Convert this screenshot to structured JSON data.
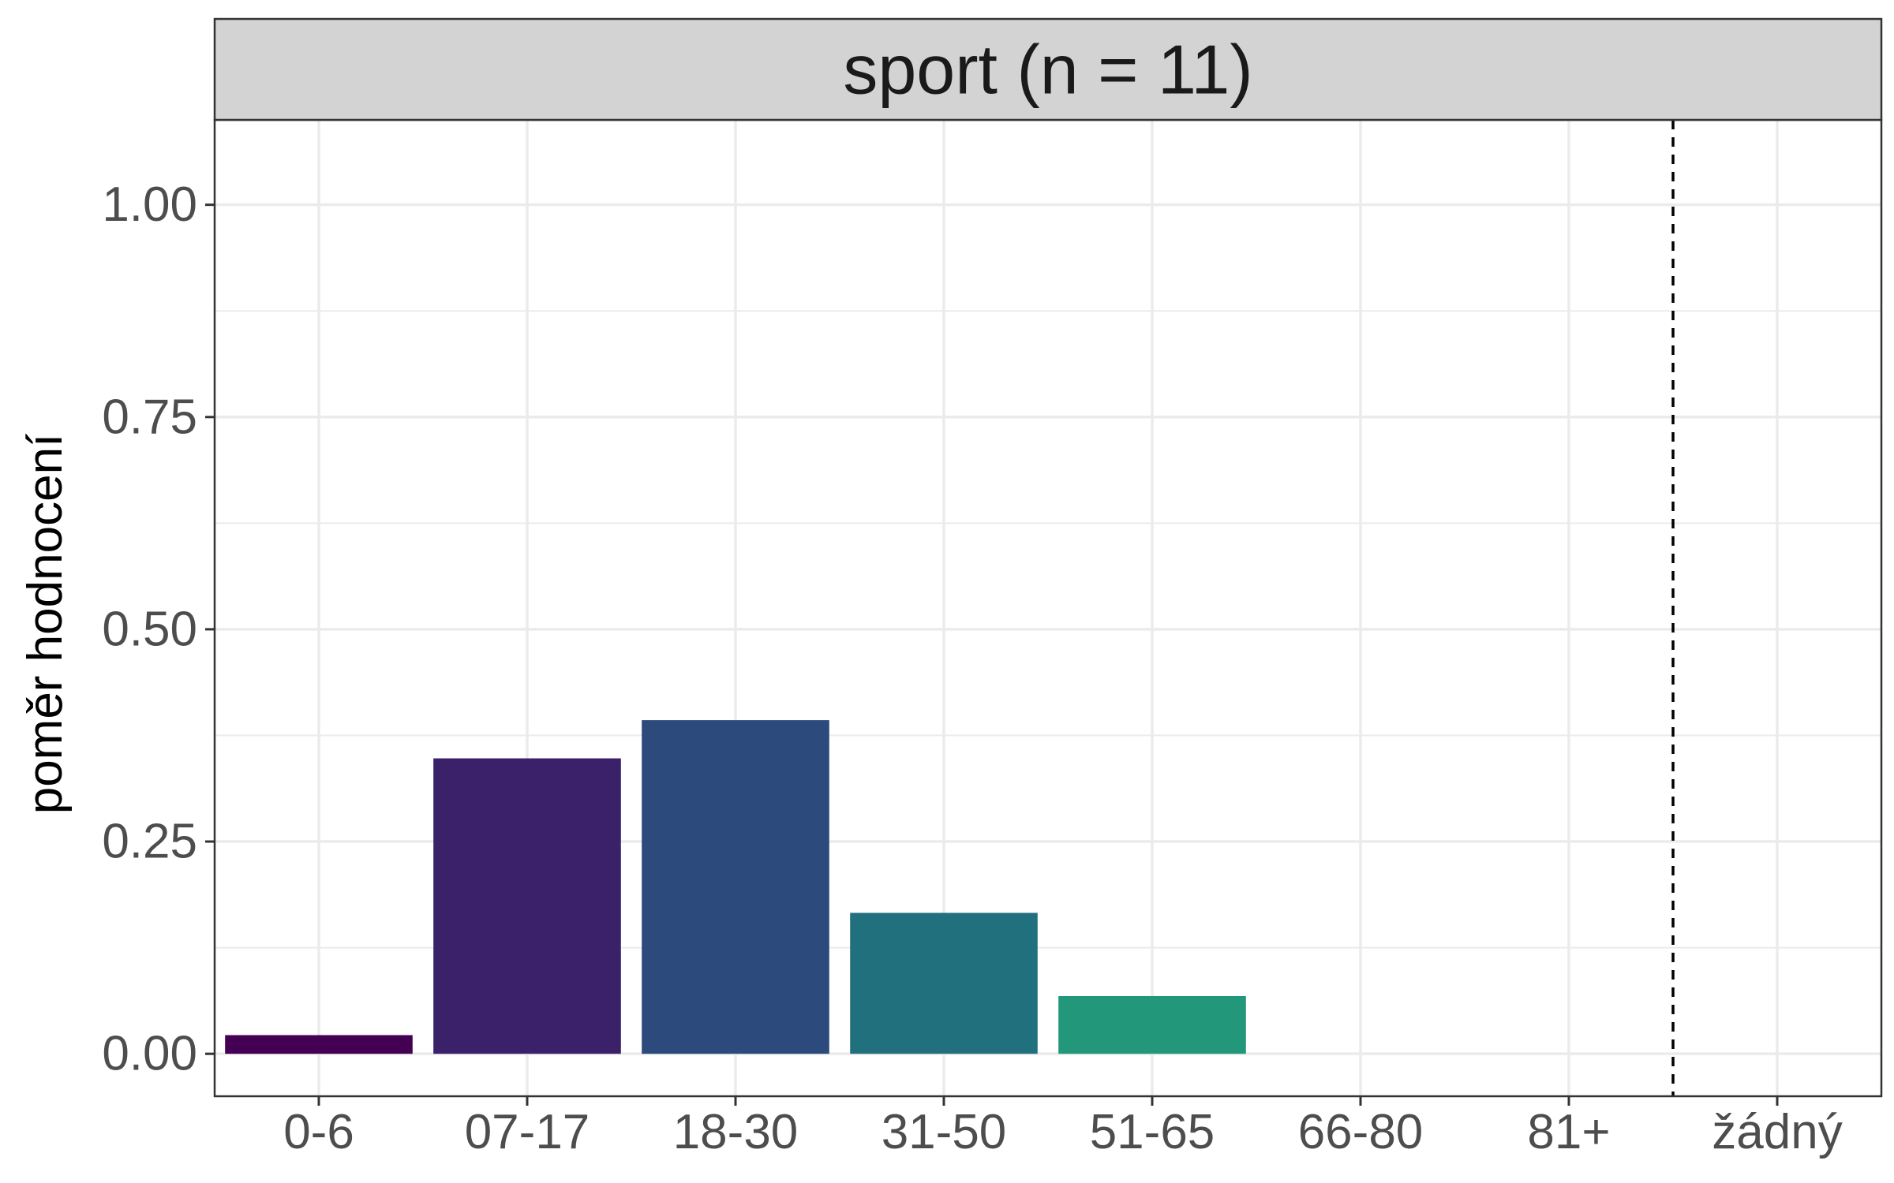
{
  "chart_data": {
    "type": "bar",
    "facet_title": "sport (n = 11)",
    "xlabel": "",
    "ylabel": "poměr hodnocení",
    "categories": [
      "0-6",
      "07-17",
      "18-30",
      "31-50",
      "51-65",
      "66-80",
      "81+",
      "žádný"
    ],
    "values": [
      0.022,
      0.348,
      0.393,
      0.166,
      0.068,
      0,
      0,
      0
    ],
    "colors": [
      "#440154",
      "#3b2169",
      "#2c4a7c",
      "#21707e",
      "#22977a",
      "#21908c",
      "#21908c",
      "#21908c"
    ],
    "ylim": [
      -0.05,
      1.1
    ],
    "y_ticks": [
      "0.00",
      "0.25",
      "0.50",
      "0.75",
      "1.00"
    ],
    "y_tick_values": [
      0,
      0.25,
      0.5,
      0.75,
      1.0
    ],
    "grid": true,
    "reference_line": {
      "style": "dashed",
      "between": [
        "81+",
        "žádný"
      ]
    },
    "strip_background": "#d3d3d3"
  }
}
